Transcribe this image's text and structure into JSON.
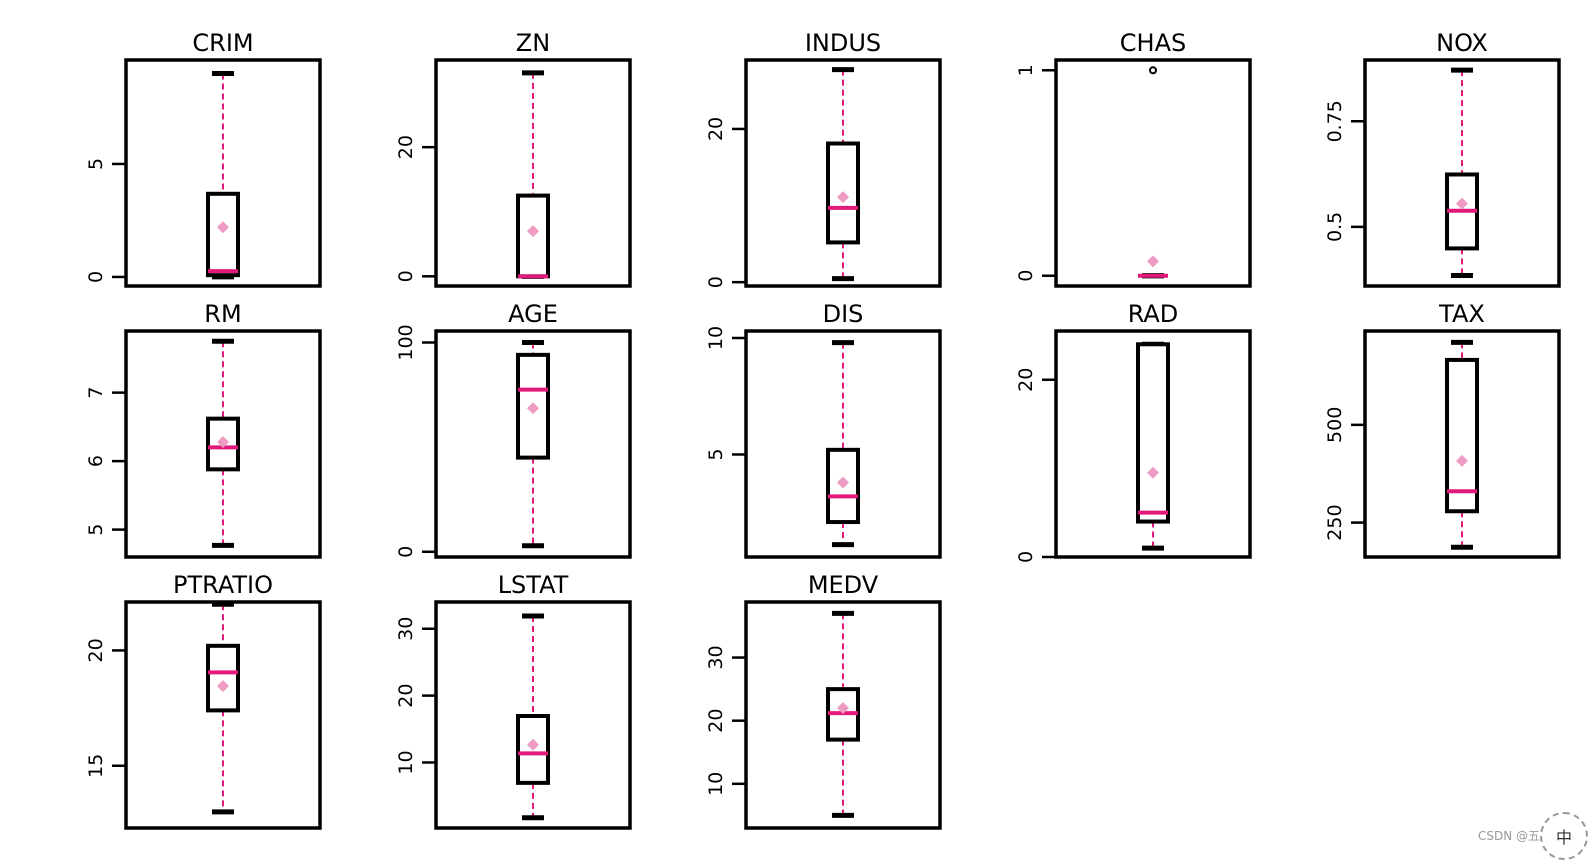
{
  "chart_data": [
    {
      "type": "box",
      "title": "CRIM",
      "yticks": [
        0,
        5
      ],
      "ylim": [
        -0.4,
        9.6
      ],
      "whisker_low": 0.006,
      "q1": 0.08,
      "median": 0.26,
      "q3": 3.68,
      "whisker_high": 9.0,
      "mean": 2.2,
      "outliers": []
    },
    {
      "type": "box",
      "title": "ZN",
      "yticks": [
        0,
        20
      ],
      "ylim": [
        -1.5,
        33.5
      ],
      "whisker_low": 0,
      "q1": 0,
      "median": 0,
      "q3": 12.5,
      "whisker_high": 31.5,
      "mean": 7.0,
      "outliers": []
    },
    {
      "type": "box",
      "title": "INDUS",
      "yticks": [
        0,
        20
      ],
      "ylim": [
        -0.5,
        29.0
      ],
      "whisker_low": 0.46,
      "q1": 5.19,
      "median": 9.69,
      "q3": 18.1,
      "whisker_high": 27.74,
      "mean": 11.1,
      "outliers": []
    },
    {
      "type": "box",
      "title": "CHAS",
      "yticks": [
        0,
        1
      ],
      "ylim": [
        -0.05,
        1.05
      ],
      "whisker_low": 0,
      "q1": 0,
      "median": 0,
      "q3": 0,
      "whisker_high": 0,
      "mean": 0.07,
      "outliers": [
        1
      ]
    },
    {
      "type": "box",
      "title": "NOX",
      "yticks": [
        0.5,
        0.75
      ],
      "ylim": [
        0.36,
        0.895
      ],
      "whisker_low": 0.385,
      "q1": 0.449,
      "median": 0.538,
      "q3": 0.624,
      "whisker_high": 0.871,
      "mean": 0.555,
      "outliers": []
    },
    {
      "type": "box",
      "title": "RM",
      "yticks": [
        5,
        6,
        7
      ],
      "ylim": [
        4.6,
        7.9
      ],
      "whisker_low": 4.77,
      "q1": 5.88,
      "median": 6.2,
      "q3": 6.62,
      "whisker_high": 7.75,
      "mean": 6.28,
      "outliers": []
    },
    {
      "type": "box",
      "title": "AGE",
      "yticks": [
        0,
        100
      ],
      "ylim": [
        -2.5,
        105.5
      ],
      "whisker_low": 2.9,
      "q1": 45.0,
      "median": 77.5,
      "q3": 94.1,
      "whisker_high": 100,
      "mean": 68.6,
      "outliers": []
    },
    {
      "type": "box",
      "title": "DIS",
      "yticks": [
        5,
        10
      ],
      "ylim": [
        0.6,
        10.3
      ],
      "whisker_low": 1.13,
      "q1": 2.1,
      "median": 3.2,
      "q3": 5.2,
      "whisker_high": 9.8,
      "mean": 3.8,
      "outliers": []
    },
    {
      "type": "box",
      "title": "RAD",
      "yticks": [
        0,
        20
      ],
      "ylim": [
        0,
        25.5
      ],
      "whisker_low": 1,
      "q1": 4,
      "median": 5,
      "q3": 24,
      "whisker_high": 24,
      "mean": 9.5,
      "outliers": []
    },
    {
      "type": "box",
      "title": "TAX",
      "yticks": [
        250,
        500
      ],
      "ylim": [
        162,
        740
      ],
      "whisker_low": 187,
      "q1": 279,
      "median": 330,
      "q3": 666,
      "whisker_high": 711,
      "mean": 408,
      "outliers": []
    },
    {
      "type": "box",
      "title": "PTRATIO",
      "yticks": [
        15,
        20
      ],
      "ylim": [
        12.3,
        22.1
      ],
      "whisker_low": 13.0,
      "q1": 17.4,
      "median": 19.05,
      "q3": 20.2,
      "whisker_high": 22.0,
      "mean": 18.45,
      "outliers": []
    },
    {
      "type": "box",
      "title": "LSTAT",
      "yticks": [
        10,
        20,
        30
      ],
      "ylim": [
        0.2,
        34.0
      ],
      "whisker_low": 1.73,
      "q1": 6.95,
      "median": 11.36,
      "q3": 16.95,
      "whisker_high": 31.9,
      "mean": 12.65,
      "outliers": []
    },
    {
      "type": "box",
      "title": "MEDV",
      "yticks": [
        10,
        20,
        30
      ],
      "ylim": [
        3.0,
        38.8
      ],
      "whisker_low": 5.0,
      "q1": 17.0,
      "median": 21.2,
      "q3": 25.0,
      "whisker_high": 37.0,
      "mean": 22.0,
      "outliers": []
    }
  ],
  "colors": {
    "median": "#e0197a",
    "whisker": "#e0197a",
    "mean_marker": "#ee9cc4",
    "box": "#000000"
  },
  "watermark": "CSDN @五元钱",
  "ime_badge": "中"
}
